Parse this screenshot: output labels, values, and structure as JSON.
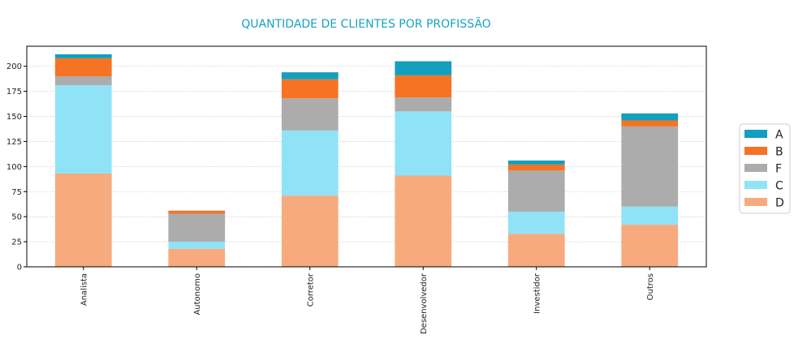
{
  "chart_data": {
    "type": "bar",
    "stacked": true,
    "title": "QUANTIDADE DE CLIENTES POR PROFISSÃO",
    "title_color": "#17a2c0",
    "xlabel": "",
    "ylabel": "",
    "categories": [
      "Analista",
      "Autonomo",
      "Corretor",
      "Desenvolvedor",
      "Investidor",
      "Outros"
    ],
    "ylim": [
      0,
      220
    ],
    "yticks": [
      0,
      25,
      50,
      75,
      100,
      125,
      150,
      175,
      200
    ],
    "grid": "horizontal-dotted",
    "legend_placement": "right",
    "series": [
      {
        "name": "D",
        "color": "#f7aa7e",
        "values": [
          93,
          18,
          71,
          91,
          33,
          42
        ]
      },
      {
        "name": "C",
        "color": "#90e3f6",
        "values": [
          88,
          7,
          65,
          64,
          22,
          18
        ]
      },
      {
        "name": "F",
        "color": "#acacac",
        "values": [
          9,
          28,
          32,
          14,
          41,
          80
        ]
      },
      {
        "name": "B",
        "color": "#f57323",
        "values": [
          18,
          3,
          19,
          22,
          6,
          6
        ]
      },
      {
        "name": "A",
        "color": "#139fbd",
        "values": [
          4,
          0,
          7,
          14,
          4,
          7
        ]
      }
    ]
  }
}
